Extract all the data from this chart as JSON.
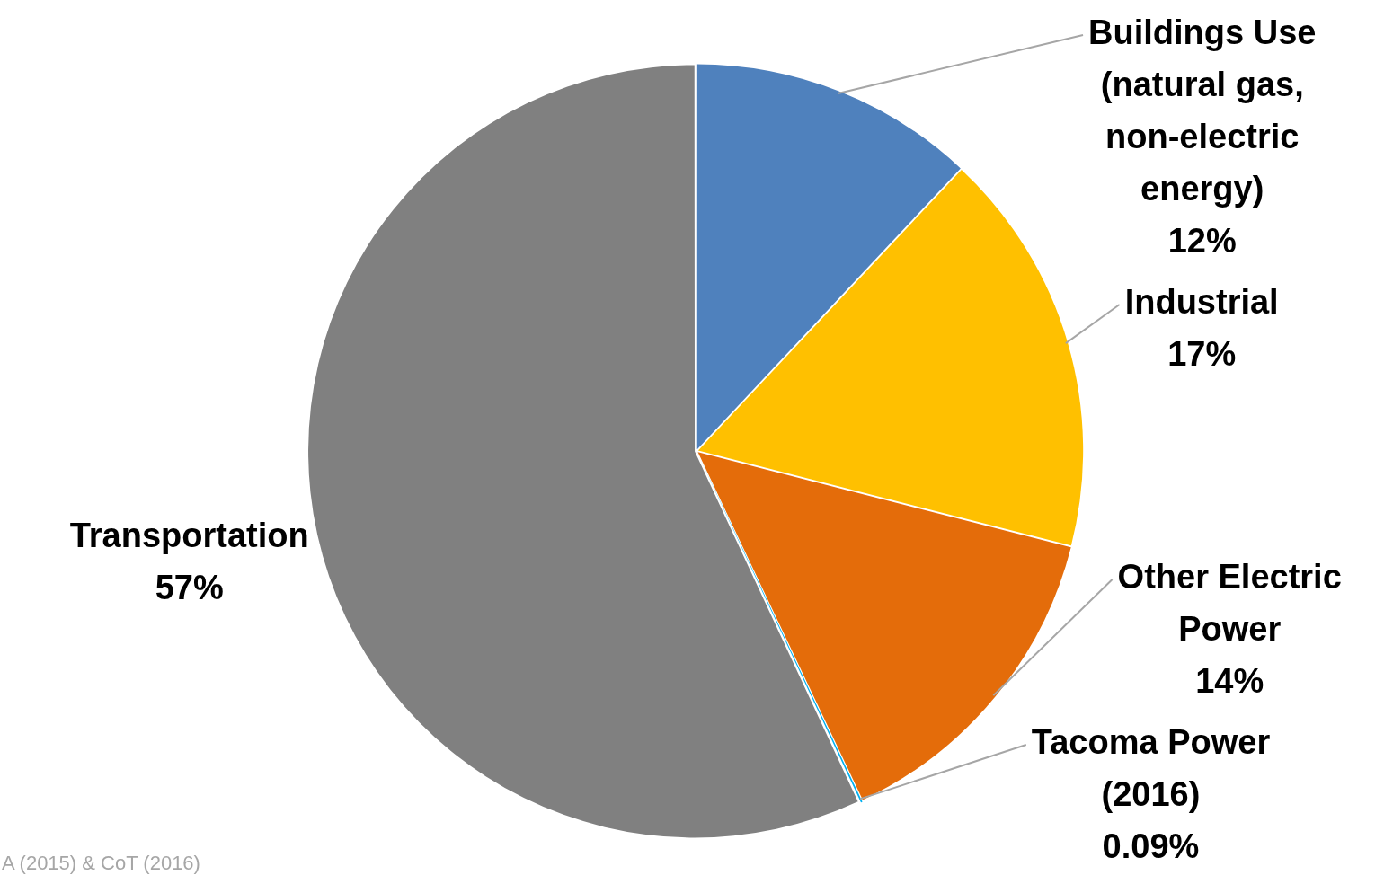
{
  "chart_data": {
    "type": "pie",
    "categories": [
      "Buildings Use (natural gas, non-electric energy)",
      "Industrial",
      "Other Electric Power",
      "Tacoma Power (2016)",
      "Transportation"
    ],
    "values": [
      12,
      17,
      14,
      0.09,
      57
    ],
    "value_labels": [
      "12%",
      "17%",
      "14%",
      "0.09%",
      "57%"
    ],
    "colors": [
      "#4f81bd",
      "#ffc000",
      "#e46c0a",
      "#00b0f0",
      "#808080"
    ],
    "legend": false,
    "annotations": [
      "A (2015) & CoT (2016)"
    ]
  }
}
